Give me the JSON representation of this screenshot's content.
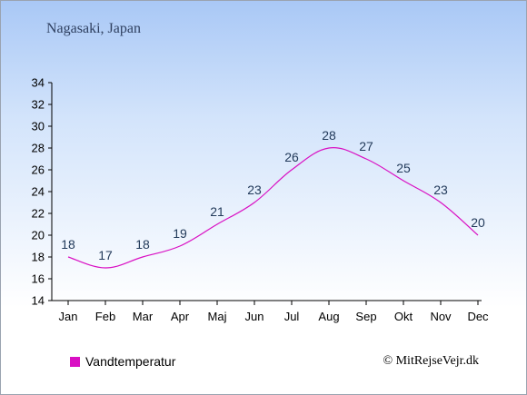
{
  "location": "Nagasaki, Japan",
  "legend_label": "Vandtemperatur",
  "credit": "© MitRejseVejr.dk",
  "colors": {
    "series": "#d90fc3",
    "data_label": "#223a5a",
    "axis": "#000000"
  },
  "chart_data": {
    "type": "line",
    "categories": [
      "Jan",
      "Feb",
      "Mar",
      "Apr",
      "Maj",
      "Jun",
      "Jul",
      "Aug",
      "Sep",
      "Okt",
      "Nov",
      "Dec"
    ],
    "series": [
      {
        "name": "Vandtemperatur",
        "values": [
          18,
          17,
          18,
          19,
          21,
          23,
          26,
          28,
          27,
          25,
          23,
          20
        ]
      }
    ],
    "ylim": [
      14,
      34
    ],
    "yticks": [
      14,
      16,
      18,
      20,
      22,
      24,
      26,
      28,
      30,
      32,
      34
    ],
    "grid": false,
    "legend": "bottom-left"
  }
}
